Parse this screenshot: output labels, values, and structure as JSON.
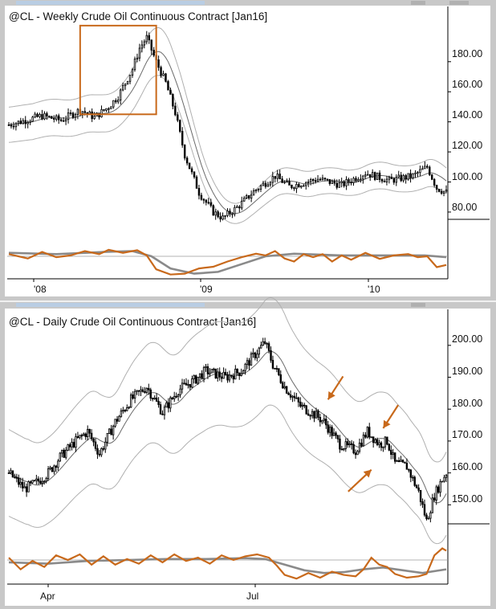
{
  "colors": {
    "frame": "#c8c8c8",
    "panel_bg": "#ffffff",
    "candle": "#000000",
    "band": "#b0b0b0",
    "mid_band": "#6a6a6a",
    "highlight": "#c8691b",
    "osc_fast": "#c8691b",
    "osc_slow": "#8a8a8a",
    "scroll_thumb": "#b9cde3"
  },
  "chart_data": [
    {
      "type": "candlestick",
      "title": "@CL - Weekly  Crude Oil Continuous Contract [Jan16]",
      "x_ticks": [
        "'08",
        "'09",
        "'10"
      ],
      "y_ticks": [
        "80.00",
        "100.00",
        "120.00",
        "140.00",
        "160.00",
        "180.00"
      ],
      "ylim": [
        65,
        205
      ],
      "price_path": [
        [
          0,
          138
        ],
        [
          14,
          144
        ],
        [
          22,
          141
        ],
        [
          30,
          148
        ],
        [
          36,
          143
        ],
        [
          42,
          150
        ],
        [
          46,
          157
        ],
        [
          52,
          175
        ],
        [
          55,
          189
        ],
        [
          58,
          196
        ],
        [
          62,
          180
        ],
        [
          66,
          166
        ],
        [
          70,
          146
        ],
        [
          74,
          118
        ],
        [
          80,
          93
        ],
        [
          86,
          80
        ],
        [
          90,
          76
        ],
        [
          96,
          83
        ],
        [
          104,
          95
        ],
        [
          112,
          104
        ],
        [
          118,
          97
        ],
        [
          130,
          102
        ],
        [
          140,
          98
        ],
        [
          150,
          106
        ],
        [
          160,
          101
        ],
        [
          170,
          104
        ],
        [
          176,
          110
        ],
        [
          180,
          96
        ],
        [
          184,
          93
        ]
      ],
      "highlight_box": {
        "from_bar": 30,
        "to_bar": 62,
        "low": 145,
        "high": 204
      },
      "osc_fast": [
        [
          0,
          55
        ],
        [
          8,
          45
        ],
        [
          14,
          60
        ],
        [
          20,
          48
        ],
        [
          26,
          52
        ],
        [
          32,
          62
        ],
        [
          38,
          55
        ],
        [
          42,
          65
        ],
        [
          48,
          58
        ],
        [
          54,
          64
        ],
        [
          58,
          52
        ],
        [
          62,
          20
        ],
        [
          68,
          8
        ],
        [
          74,
          10
        ],
        [
          80,
          22
        ],
        [
          86,
          26
        ],
        [
          92,
          38
        ],
        [
          98,
          48
        ],
        [
          104,
          56
        ],
        [
          108,
          52
        ],
        [
          112,
          62
        ],
        [
          116,
          45
        ],
        [
          120,
          38
        ],
        [
          124,
          55
        ],
        [
          128,
          48
        ],
        [
          132,
          55
        ],
        [
          136,
          38
        ],
        [
          140,
          52
        ],
        [
          144,
          42
        ],
        [
          150,
          58
        ],
        [
          156,
          44
        ],
        [
          162,
          52
        ],
        [
          168,
          55
        ],
        [
          172,
          48
        ],
        [
          176,
          50
        ],
        [
          180,
          25
        ],
        [
          184,
          30
        ]
      ],
      "osc_slow": [
        [
          0,
          58
        ],
        [
          20,
          55
        ],
        [
          40,
          60
        ],
        [
          52,
          62
        ],
        [
          60,
          50
        ],
        [
          68,
          22
        ],
        [
          78,
          10
        ],
        [
          88,
          14
        ],
        [
          98,
          32
        ],
        [
          108,
          50
        ],
        [
          120,
          56
        ],
        [
          140,
          52
        ],
        [
          160,
          52
        ],
        [
          175,
          52
        ],
        [
          184,
          48
        ]
      ]
    },
    {
      "type": "candlestick",
      "title": "@CL - Daily  Crude Oil Continuous Contract [Jan16]",
      "x_ticks": [
        "Apr",
        "Jul"
      ],
      "y_ticks": [
        "150.00",
        "160.00",
        "170.00",
        "180.00",
        "190.00",
        "200.00"
      ],
      "ylim": [
        140,
        205
      ],
      "price_path": [
        [
          0,
          160
        ],
        [
          8,
          155
        ],
        [
          14,
          157
        ],
        [
          20,
          160
        ],
        [
          26,
          165
        ],
        [
          34,
          170
        ],
        [
          40,
          173
        ],
        [
          46,
          166
        ],
        [
          54,
          176
        ],
        [
          62,
          183
        ],
        [
          70,
          187
        ],
        [
          78,
          179
        ],
        [
          86,
          186
        ],
        [
          94,
          189
        ],
        [
          100,
          192
        ],
        [
          110,
          190
        ],
        [
          118,
          192
        ],
        [
          126,
          198
        ],
        [
          130,
          201
        ],
        [
          134,
          194
        ],
        [
          140,
          187
        ],
        [
          148,
          181
        ],
        [
          156,
          178
        ],
        [
          160,
          176
        ],
        [
          168,
          169
        ],
        [
          176,
          167
        ],
        [
          182,
          173
        ],
        [
          188,
          169
        ],
        [
          192,
          170
        ],
        [
          196,
          163
        ],
        [
          202,
          162
        ],
        [
          208,
          154
        ],
        [
          212,
          145
        ],
        [
          216,
          153
        ],
        [
          220,
          158
        ],
        [
          222,
          160
        ]
      ],
      "arrows": [
        {
          "bar": 162,
          "price": 183,
          "dir": "down-left"
        },
        {
          "bar": 190,
          "price": 174,
          "dir": "down-left"
        },
        {
          "bar": 184,
          "price": 161,
          "dir": "up-right"
        }
      ],
      "osc_fast": [
        [
          0,
          55
        ],
        [
          6,
          30
        ],
        [
          12,
          48
        ],
        [
          18,
          35
        ],
        [
          24,
          60
        ],
        [
          30,
          50
        ],
        [
          36,
          62
        ],
        [
          42,
          40
        ],
        [
          48,
          58
        ],
        [
          54,
          40
        ],
        [
          60,
          52
        ],
        [
          66,
          42
        ],
        [
          72,
          60
        ],
        [
          78,
          45
        ],
        [
          84,
          62
        ],
        [
          90,
          48
        ],
        [
          96,
          55
        ],
        [
          102,
          42
        ],
        [
          108,
          60
        ],
        [
          114,
          50
        ],
        [
          120,
          58
        ],
        [
          126,
          62
        ],
        [
          132,
          55
        ],
        [
          136,
          38
        ],
        [
          140,
          18
        ],
        [
          146,
          10
        ],
        [
          152,
          22
        ],
        [
          158,
          12
        ],
        [
          164,
          25
        ],
        [
          170,
          18
        ],
        [
          176,
          15
        ],
        [
          180,
          30
        ],
        [
          184,
          55
        ],
        [
          188,
          40
        ],
        [
          192,
          35
        ],
        [
          196,
          20
        ],
        [
          202,
          12
        ],
        [
          208,
          15
        ],
        [
          212,
          20
        ],
        [
          216,
          60
        ],
        [
          220,
          75
        ],
        [
          222,
          70
        ]
      ],
      "osc_slow": [
        [
          0,
          45
        ],
        [
          20,
          42
        ],
        [
          40,
          48
        ],
        [
          60,
          50
        ],
        [
          80,
          52
        ],
        [
          100,
          52
        ],
        [
          120,
          54
        ],
        [
          130,
          52
        ],
        [
          140,
          40
        ],
        [
          150,
          28
        ],
        [
          160,
          22
        ],
        [
          170,
          24
        ],
        [
          180,
          30
        ],
        [
          190,
          34
        ],
        [
          200,
          28
        ],
        [
          210,
          22
        ],
        [
          222,
          30
        ]
      ]
    }
  ]
}
